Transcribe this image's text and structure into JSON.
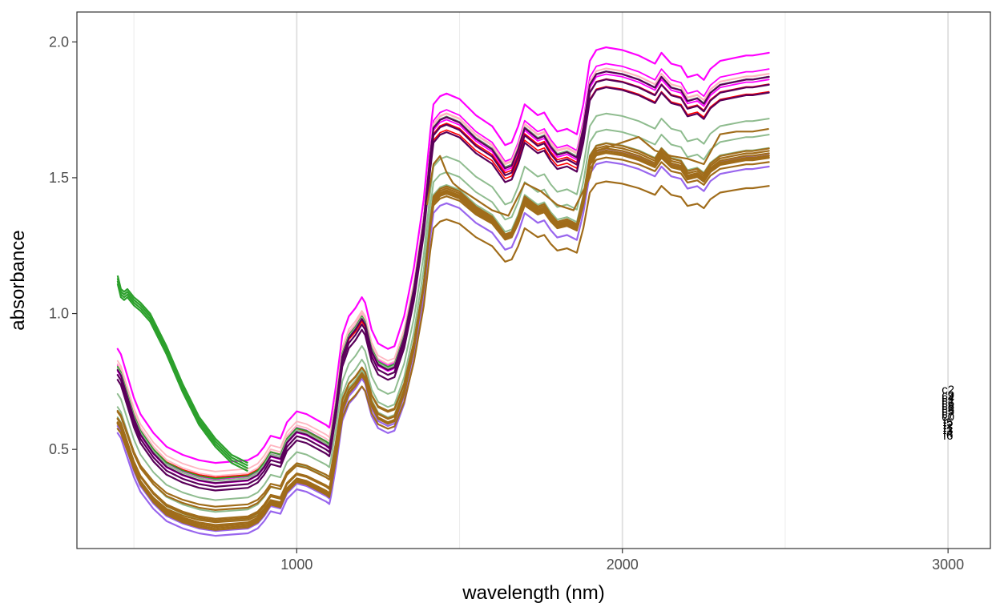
{
  "chart_data": {
    "type": "line",
    "title": "",
    "xlabel": "wavelength (nm)",
    "ylabel": "absorbance",
    "xlim": [
      325,
      3130
    ],
    "ylim": [
      0.135,
      2.11
    ],
    "x_ticks": [
      1000,
      2000,
      3000
    ],
    "x_tick_labels": [
      "1000",
      "2000",
      "3000"
    ],
    "x_minor_ticks": [
      500,
      1500,
      2500
    ],
    "y_ticks": [
      0.5,
      1.0,
      1.5,
      2.0
    ],
    "y_tick_labels": [
      "0.5",
      "1.0",
      "1.5",
      "2.0"
    ],
    "grid": "vertical only",
    "legend": "none",
    "colors": [
      "#ff00ff",
      "#ff0000",
      "#ffb6c1",
      "#2ca02c",
      "#8fbc8f",
      "#5a005a",
      "#9966ee",
      "#a06c1a"
    ],
    "end_label_x": 3000,
    "end_labels": [
      {
        "text": "c2",
        "y": 0.72
      },
      {
        "text": "c9",
        "y": 0.7
      },
      {
        "text": "c4",
        "y": 0.69
      },
      {
        "text": "c1",
        "y": 0.68
      },
      {
        "text": "c6",
        "y": 0.67
      },
      {
        "text": "c8",
        "y": 0.66
      },
      {
        "text": "c3",
        "y": 0.65
      },
      {
        "text": "c5",
        "y": 0.64
      },
      {
        "text": "c7",
        "y": 0.63
      },
      {
        "text": "c0",
        "y": 0.62
      },
      {
        "text": "f5",
        "y": 0.6
      },
      {
        "text": "f2",
        "y": 0.59
      },
      {
        "text": "f1",
        "y": 0.58
      },
      {
        "text": "f3",
        "y": 0.57
      },
      {
        "text": "f4",
        "y": 0.56
      },
      {
        "text": "f6",
        "y": 0.55
      }
    ],
    "reference_shape": {
      "x": [
        450,
        460,
        480,
        500,
        520,
        560,
        600,
        650,
        700,
        750,
        800,
        850,
        880,
        900,
        920,
        950,
        970,
        1000,
        1030,
        1060,
        1090,
        1100,
        1105,
        1120,
        1140,
        1160,
        1180,
        1200,
        1210,
        1230,
        1250,
        1280,
        1300,
        1330,
        1360,
        1390,
        1410,
        1420,
        1440,
        1460,
        1500,
        1550,
        1600,
        1640,
        1660,
        1680,
        1700,
        1720,
        1740,
        1760,
        1780,
        1800,
        1830,
        1860,
        1880,
        1900,
        1920,
        1950,
        2000,
        2050,
        2100,
        2120,
        2150,
        2180,
        2200,
        2230,
        2250,
        2270,
        2300,
        2340,
        2380,
        2400,
        2450
      ],
      "y": [
        0.8,
        0.78,
        0.7,
        0.62,
        0.56,
        0.49,
        0.44,
        0.41,
        0.39,
        0.38,
        0.385,
        0.39,
        0.41,
        0.44,
        0.48,
        0.47,
        0.53,
        0.57,
        0.56,
        0.54,
        0.52,
        0.51,
        0.54,
        0.66,
        0.85,
        0.92,
        0.95,
        0.99,
        0.97,
        0.87,
        0.82,
        0.8,
        0.81,
        0.92,
        1.1,
        1.35,
        1.6,
        1.7,
        1.73,
        1.74,
        1.72,
        1.66,
        1.62,
        1.55,
        1.56,
        1.62,
        1.7,
        1.68,
        1.66,
        1.67,
        1.63,
        1.6,
        1.61,
        1.59,
        1.7,
        1.86,
        1.9,
        1.91,
        1.9,
        1.88,
        1.85,
        1.89,
        1.85,
        1.84,
        1.8,
        1.81,
        1.79,
        1.83,
        1.86,
        1.87,
        1.88,
        1.88,
        1.89
      ]
    },
    "series": [
      {
        "name": "",
        "color": "#ff00ff",
        "offset": 0.07,
        "scale": 1.0,
        "width": 2.2
      },
      {
        "name": "",
        "color": "#ff00ff",
        "offset": 0.0,
        "scale": 0.985,
        "width": 1.8
      },
      {
        "name": "",
        "color": "#ff00ff",
        "offset": 0.01,
        "scale": 1.0,
        "width": 1.8
      },
      {
        "name": "",
        "color": "#ff0000",
        "offset": 0.03,
        "scale": 0.96,
        "width": 1.6
      },
      {
        "name": "",
        "color": "#ff0000",
        "offset": 0.04,
        "scale": 0.94,
        "width": 1.6
      },
      {
        "name": "",
        "color": "#ffb6c1",
        "offset": 0.05,
        "scale": 0.97,
        "width": 1.8
      },
      {
        "name": "",
        "color": "#ffb6c1",
        "offset": 0.03,
        "scale": 0.98,
        "width": 1.8
      },
      {
        "name": "",
        "color": "#2ca02c",
        "offset": 0.02,
        "scale": 0.98,
        "width": 1.8
      },
      {
        "name": "",
        "color": "#8fbc8f",
        "offset": 0.01,
        "scale": 0.985,
        "width": 2.0
      },
      {
        "name": "",
        "color": "#8fbc8f",
        "offset": -0.04,
        "scale": 0.93,
        "width": 2.0
      },
      {
        "name": "",
        "color": "#8fbc8f",
        "offset": -0.08,
        "scale": 0.92,
        "width": 2.0
      },
      {
        "name": "",
        "color": "#8fbc8f",
        "offset": -0.11,
        "scale": 0.91,
        "width": 2.0
      },
      {
        "name": "",
        "color": "#5a005a",
        "offset": -0.01,
        "scale": 0.98,
        "width": 2.2
      },
      {
        "name": "",
        "color": "#5a005a",
        "offset": 0.0,
        "scale": 0.99,
        "width": 2.2
      },
      {
        "name": "",
        "color": "#5a005a",
        "offset": -0.02,
        "scale": 0.97,
        "width": 2.2
      },
      {
        "name": "",
        "color": "#9966ee",
        "offset": -0.16,
        "scale": 0.9,
        "width": 2.2
      },
      {
        "name": "",
        "color": "#9966ee",
        "offset": -0.15,
        "scale": 0.92,
        "width": 2.2
      },
      {
        "name": "",
        "color": "#a06c1a",
        "offset": -0.09,
        "scale": 0.88,
        "width": 2.2
      },
      {
        "name": "",
        "color": "#a06c1a",
        "offset": -0.1,
        "scale": 0.89,
        "width": 2.2
      },
      {
        "name": "",
        "color": "#a06c1a",
        "offset": -0.12,
        "scale": 0.9,
        "width": 2.2
      },
      {
        "name": "",
        "color": "#a06c1a",
        "offset": -0.13,
        "scale": 0.91,
        "width": 2.2
      },
      {
        "name": "",
        "color": "#a06c1a",
        "offset": -0.14,
        "scale": 0.92,
        "width": 2.2
      },
      {
        "name": "",
        "color": "#a06c1a",
        "offset": -0.15,
        "scale": 0.93,
        "width": 2.2
      },
      {
        "name": "",
        "color": "#a06c1a",
        "offset": -0.05,
        "scale": 0.86,
        "width": 2.2
      },
      {
        "name": "",
        "color": "#a06c1a",
        "offset": -0.03,
        "scale": 0.84,
        "width": 2.2
      },
      {
        "name": "",
        "color": "#a06c1a",
        "offset": -0.08,
        "scale": 0.82,
        "width": 2.2
      }
    ],
    "green_series": {
      "name": "",
      "color": "#2ca02c",
      "copies": [
        0.0,
        0.01,
        -0.01,
        0.02
      ],
      "x": [
        450,
        460,
        470,
        480,
        500,
        520,
        550,
        600,
        650,
        700,
        750,
        800,
        850
      ],
      "y": [
        1.12,
        1.07,
        1.06,
        1.07,
        1.04,
        1.02,
        0.98,
        0.86,
        0.72,
        0.6,
        0.52,
        0.46,
        0.43
      ]
    },
    "brown_outlier": {
      "name": "",
      "color": "#a06c1a",
      "x": [
        1400,
        1420,
        1440,
        1460,
        1480,
        1500,
        1550,
        1600,
        1650,
        1700,
        1750,
        1800,
        1850,
        1900,
        1920,
        1950,
        2000,
        2050,
        2100,
        2150,
        2200,
        2250,
        2300,
        2350,
        2400,
        2450
      ],
      "y": [
        1.4,
        1.55,
        1.58,
        1.52,
        1.48,
        1.46,
        1.42,
        1.38,
        1.36,
        1.48,
        1.45,
        1.4,
        1.38,
        1.5,
        1.6,
        1.61,
        1.63,
        1.65,
        1.6,
        1.58,
        1.57,
        1.55,
        1.66,
        1.67,
        1.67,
        1.68
      ]
    }
  }
}
